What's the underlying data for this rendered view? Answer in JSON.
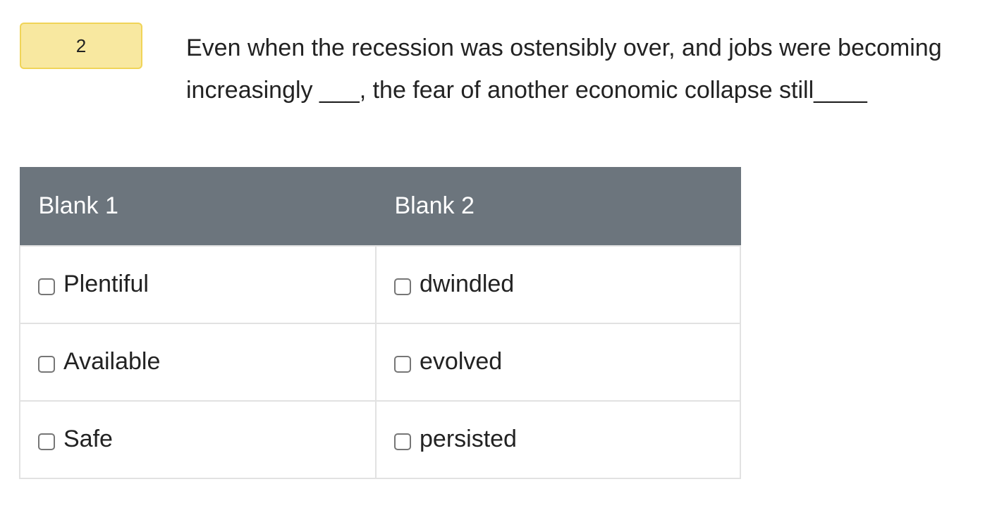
{
  "question": {
    "number": "2",
    "text": "Even when the recession was ostensibly over, and jobs were becoming increasingly ___, the fear of another economic collapse still____"
  },
  "table": {
    "headers": [
      "Blank 1",
      "Blank 2"
    ],
    "blank1_options": [
      "Plentiful",
      "Available",
      "Safe"
    ],
    "blank2_options": [
      "dwindled",
      "evolved",
      "persisted"
    ]
  },
  "colors": {
    "number_badge_bg": "#f8e8a0",
    "number_badge_border": "#f0d458",
    "header_bg": "#6c757d",
    "cell_border": "#e2e2e2"
  }
}
